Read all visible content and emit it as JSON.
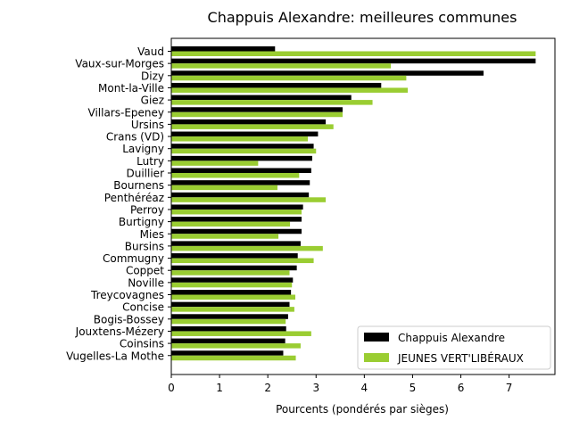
{
  "chart_data": {
    "type": "bar",
    "orientation": "horizontal",
    "title": "Chappuis Alexandre: meilleures communes",
    "xlabel": "Pourcents (pondérés par sièges)",
    "ylabel": "",
    "xlim": [
      0,
      7.95
    ],
    "xticks": [
      0,
      1,
      2,
      3,
      4,
      5,
      6,
      7
    ],
    "legend_position": "lower-right",
    "grid": false,
    "categories": [
      "Vaud",
      "Vaux-sur-Morges",
      "Dizy",
      "Mont-la-Ville",
      "Giez",
      "Villars-Epeney",
      "Ursins",
      "Crans (VD)",
      "Lavigny",
      "Lutry",
      "Duillier",
      "Bournens",
      "Penthéréaz",
      "Perroy",
      "Burtigny",
      "Mies",
      "Bursins",
      "Commugny",
      "Coppet",
      "Noville",
      "Treycovagnes",
      "Concise",
      "Bogis-Bossey",
      "Jouxtens-Mézery",
      "Coinsins",
      "Vugelles-La Mothe"
    ],
    "series": [
      {
        "name": "Chappuis Alexandre",
        "color": "#000000",
        "values": [
          2.15,
          7.55,
          6.47,
          4.35,
          3.73,
          3.55,
          3.2,
          3.04,
          2.95,
          2.92,
          2.9,
          2.87,
          2.85,
          2.73,
          2.7,
          2.7,
          2.68,
          2.62,
          2.6,
          2.52,
          2.48,
          2.45,
          2.42,
          2.38,
          2.36,
          2.32
        ]
      },
      {
        "name": "JEUNES VERT'LIBÉRAUX",
        "color": "#9acd32",
        "values": [
          7.55,
          4.55,
          4.87,
          4.9,
          4.17,
          3.55,
          3.36,
          2.83,
          3.0,
          1.8,
          2.65,
          2.2,
          3.2,
          2.7,
          2.46,
          2.22,
          3.14,
          2.95,
          2.45,
          2.5,
          2.57,
          2.55,
          2.37,
          2.9,
          2.68,
          2.58
        ]
      }
    ]
  }
}
